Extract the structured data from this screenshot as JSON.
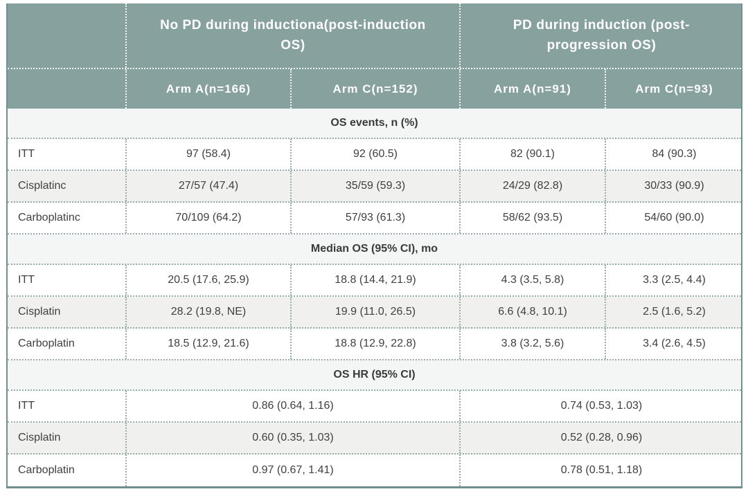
{
  "table": {
    "group_headers": [
      {
        "label": "No PD during inductiona(post-induction OS)"
      },
      {
        "label": "PD during induction (post-progression OS)"
      }
    ],
    "arm_headers": [
      "Arm A(n=166)",
      "Arm C(n=152)",
      "Arm A(n=91)",
      "Arm C(n=93)"
    ],
    "sections": [
      {
        "title": "OS events, n (%)",
        "rows": [
          {
            "label": "ITT",
            "values": [
              "97 (58.4)",
              "92 (60.5)",
              "82 (90.1)",
              "84 (90.3)"
            ]
          },
          {
            "label": "Cisplatinc",
            "values": [
              "27/57 (47.4)",
              "35/59 (59.3)",
              "24/29 (82.8)",
              "30/33 (90.9)"
            ]
          },
          {
            "label": "Carboplatinc",
            "values": [
              "70/109 (64.2)",
              "57/93 (61.3)",
              "58/62 (93.5)",
              "54/60 (90.0)"
            ]
          }
        ]
      },
      {
        "title": "Median OS (95% CI), mo",
        "rows": [
          {
            "label": "ITT",
            "values": [
              "20.5 (17.6, 25.9)",
              "18.8 (14.4, 21.9)",
              "4.3 (3.5, 5.8)",
              "3.3 (2.5, 4.4)"
            ]
          },
          {
            "label": "Cisplatin",
            "values": [
              "28.2 (19.8, NE)",
              "19.9 (11.0, 26.5)",
              "6.6 (4.8, 10.1)",
              "2.5 (1.6, 5.2)"
            ]
          },
          {
            "label": "Carboplatin",
            "values": [
              "18.5 (12.9, 21.6)",
              "18.8 (12.9, 22.8)",
              "3.8 (3.2, 5.6)",
              "3.4 (2.6, 4.5)"
            ]
          }
        ]
      },
      {
        "title": "OS HR (95% CI)",
        "rows": [
          {
            "label": "ITT",
            "values": [
              "0.86 (0.64, 1.16)",
              "0.74 (0.53, 1.03)"
            ]
          },
          {
            "label": "Cisplatin",
            "values": [
              "0.60 (0.35, 1.03)",
              "0.52 (0.28, 0.96)"
            ]
          },
          {
            "label": "Carboplatin",
            "values": [
              "0.97 (0.67, 1.41)",
              "0.78 (0.51, 1.18)"
            ]
          }
        ]
      }
    ],
    "colors": {
      "header_bg": "#87a19f",
      "outer_border": "#6f908f",
      "dotted_line": "#96acaa",
      "section_band_bg": "#f4f6f5",
      "alt_row_bg": "#f0f0ee",
      "header_text": "#ffffff",
      "body_text": "#3f3f3f"
    }
  }
}
